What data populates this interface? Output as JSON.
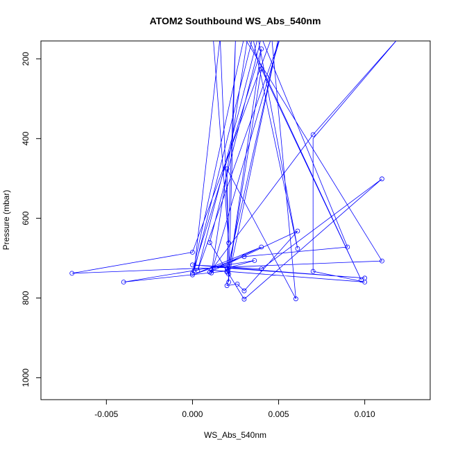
{
  "chart_data": {
    "type": "line",
    "title": "ATOM2 Southbound WS_Abs_540nm",
    "xlabel": "WS_Abs_540nm",
    "ylabel": "Pressure (mbar)",
    "xlim": [
      -0.0088,
      0.0138
    ],
    "ylim": [
      155,
      1055
    ],
    "y_reversed": true,
    "x_ticks": [
      -0.005,
      0.0,
      0.005,
      0.01
    ],
    "x_tick_labels": [
      "-0.005",
      "0.000",
      "0.005",
      "0.010"
    ],
    "y_ticks": [
      200,
      400,
      600,
      800,
      1000
    ],
    "y_tick_labels": [
      "200",
      "400",
      "600",
      "800",
      "1000"
    ],
    "grid": false,
    "series": [
      {
        "color": "#0000ff",
        "marker": "open-circle",
        "points": [
          {
            "x": 0.0012,
            "y": 145,
            "marker": false
          },
          {
            "x": 0.0021,
            "y": 662
          },
          {
            "x": 0.0016,
            "y": 146,
            "marker": false
          },
          {
            "x": 0.0001,
            "y": 731
          },
          {
            "x": 0.0035,
            "y": 146,
            "marker": false
          },
          {
            "x": 0.0061,
            "y": 676
          },
          {
            "x": 0.0038,
            "y": 146,
            "marker": false
          },
          {
            "x": 0.0003,
            "y": 731
          },
          {
            "x": 0.0051,
            "y": 146,
            "marker": false
          },
          {
            "x": 0.0011,
            "y": 737
          },
          {
            "x": 0.0032,
            "y": 146,
            "marker": false
          },
          {
            "x": 0.0098,
            "y": 755
          },
          {
            "x": 0.004,
            "y": 225
          },
          {
            "x": 0.0021,
            "y": 740
          },
          {
            "x": 0.004,
            "y": 175
          },
          {
            "x": 0.0,
            "y": 738
          },
          {
            "x": 0.003,
            "y": 146,
            "marker": false
          },
          {
            "x": 0.011,
            "y": 707
          },
          {
            "x": -0.007,
            "y": 738
          },
          {
            "x": 0.0,
            "y": 685
          },
          {
            "x": 0.0046,
            "y": 146,
            "marker": false
          },
          {
            "x": 0.006,
            "y": 802
          },
          {
            "x": 0.002,
            "y": 476
          },
          {
            "x": 0.0021,
            "y": 760
          },
          {
            "x": 0.0025,
            "y": 146,
            "marker": false
          },
          {
            "x": 0.002,
            "y": 735
          },
          {
            "x": 0.005,
            "y": 146,
            "marker": false
          },
          {
            "x": 0.002,
            "y": 769
          },
          {
            "x": 0.0026,
            "y": 765
          },
          {
            "x": 0.003,
            "y": 782
          },
          {
            "x": 0.0061,
            "y": 632
          },
          {
            "x": 0.001,
            "y": 735
          },
          {
            "x": 0.007,
            "y": 390
          },
          {
            "x": 0.012,
            "y": 146,
            "marker": false
          },
          {
            "x": 0.007,
            "y": 400,
            "marker": false
          },
          {
            "x": 0.007,
            "y": 733
          },
          {
            "x": 0.01,
            "y": 760
          },
          {
            "x": 0.0011,
            "y": 730
          },
          {
            "x": 0.004,
            "y": 672
          },
          {
            "x": 0.0,
            "y": 742
          },
          {
            "x": 0.003,
            "y": 696
          },
          {
            "x": 0.009,
            "y": 672
          },
          {
            "x": 0.004,
            "y": 146,
            "marker": false
          },
          {
            "x": 0.001,
            "y": 661
          },
          {
            "x": 0.003,
            "y": 803
          },
          {
            "x": 0.011,
            "y": 501
          },
          {
            "x": 0.004,
            "y": 727
          },
          {
            "x": 0.0,
            "y": 717
          },
          {
            "x": 0.01,
            "y": 750
          },
          {
            "x": 0.002,
            "y": 725
          },
          {
            "x": 0.0036,
            "y": 706
          },
          {
            "x": -0.004,
            "y": 760
          },
          {
            "x": 0.002,
            "y": 732
          }
        ]
      }
    ]
  }
}
